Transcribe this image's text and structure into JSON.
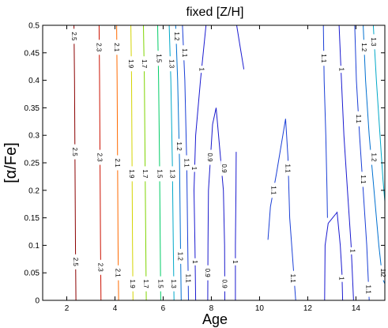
{
  "chart_data": {
    "type": "contour",
    "title": "fixed [Z/H]",
    "xlabel": "Age",
    "ylabel": "[α/Fe]",
    "xlim": [
      1,
      15.2
    ],
    "ylim": [
      0,
      0.5
    ],
    "x_ticks": [
      "2",
      "4",
      "6",
      "8",
      "10",
      "12",
      "14"
    ],
    "x_tick_values": [
      2,
      4,
      6,
      8,
      10,
      12,
      14
    ],
    "y_ticks": [
      "0",
      "0.05",
      "0.1",
      "0.15",
      "0.2",
      "0.25",
      "0.3",
      "0.35",
      "0.4",
      "0.45",
      "0.5"
    ],
    "y_tick_values": [
      0,
      0.05,
      0.1,
      0.15,
      0.2,
      0.25,
      0.3,
      0.35,
      0.4,
      0.45,
      0.5
    ],
    "grid": false,
    "legend": "none",
    "contours": [
      {
        "level": "2.5",
        "color": "#8b0000",
        "points": [
          [
            2.38,
            0
          ],
          [
            2.36,
            0.1
          ],
          [
            2.34,
            0.25
          ],
          [
            2.32,
            0.4
          ],
          [
            2.3,
            0.5
          ]
        ],
        "labels": [
          {
            "x": 2.37,
            "y": 0.07
          },
          {
            "x": 2.34,
            "y": 0.27
          },
          {
            "x": 2.31,
            "y": 0.48
          }
        ]
      },
      {
        "level": "2.3",
        "color": "#cc1100",
        "points": [
          [
            3.42,
            0
          ],
          [
            3.4,
            0.1
          ],
          [
            3.38,
            0.25
          ],
          [
            3.36,
            0.4
          ],
          [
            3.34,
            0.5
          ]
        ],
        "labels": [
          {
            "x": 3.41,
            "y": 0.06
          },
          {
            "x": 3.38,
            "y": 0.26
          },
          {
            "x": 3.35,
            "y": 0.46
          }
        ]
      },
      {
        "level": "2.1",
        "color": "#ff6a00",
        "points": [
          [
            4.15,
            0
          ],
          [
            4.13,
            0.1
          ],
          [
            4.11,
            0.25
          ],
          [
            4.09,
            0.4
          ],
          [
            4.07,
            0.5
          ]
        ],
        "labels": [
          {
            "x": 4.14,
            "y": 0.05
          },
          {
            "x": 4.11,
            "y": 0.25
          },
          {
            "x": 4.08,
            "y": 0.46
          }
        ]
      },
      {
        "level": "1.9",
        "color": "#d4d400",
        "points": [
          [
            4.75,
            0
          ],
          [
            4.73,
            0.1
          ],
          [
            4.71,
            0.25
          ],
          [
            4.69,
            0.4
          ],
          [
            4.66,
            0.5
          ]
        ],
        "labels": [
          {
            "x": 4.74,
            "y": 0.03
          },
          {
            "x": 4.71,
            "y": 0.23
          },
          {
            "x": 4.68,
            "y": 0.43
          }
        ]
      },
      {
        "level": "1.7",
        "color": "#7fd400",
        "points": [
          [
            5.3,
            0
          ],
          [
            5.28,
            0.1
          ],
          [
            5.25,
            0.25
          ],
          [
            5.22,
            0.4
          ],
          [
            5.18,
            0.5
          ]
        ],
        "labels": [
          {
            "x": 5.3,
            "y": 0.03
          },
          {
            "x": 5.27,
            "y": 0.23
          },
          {
            "x": 5.23,
            "y": 0.43
          }
        ]
      },
      {
        "level": "1.5",
        "color": "#00cc66",
        "points": [
          [
            5.9,
            0
          ],
          [
            5.88,
            0.1
          ],
          [
            5.85,
            0.25
          ],
          [
            5.81,
            0.4
          ],
          [
            5.77,
            0.5
          ]
        ],
        "labels": [
          {
            "x": 5.9,
            "y": 0.03
          },
          {
            "x": 5.87,
            "y": 0.23
          },
          {
            "x": 5.83,
            "y": 0.44
          }
        ]
      },
      {
        "level": "1.3",
        "color": "#00a8c8",
        "points": [
          [
            6.45,
            0
          ],
          [
            6.42,
            0.1
          ],
          [
            6.38,
            0.25
          ],
          [
            6.32,
            0.4
          ],
          [
            6.25,
            0.5
          ]
        ],
        "labels": [
          {
            "x": 6.45,
            "y": 0.03
          },
          {
            "x": 6.4,
            "y": 0.23
          },
          {
            "x": 6.36,
            "y": 0.43
          }
        ]
      },
      {
        "level": "1.2",
        "color": "#0070d0",
        "points": [
          [
            6.75,
            0
          ],
          [
            6.72,
            0.1
          ],
          [
            6.68,
            0.25
          ],
          [
            6.6,
            0.4
          ],
          [
            6.52,
            0.5
          ]
        ],
        "labels": [
          {
            "x": 6.73,
            "y": 0.08
          },
          {
            "x": 6.68,
            "y": 0.28
          },
          {
            "x": 6.58,
            "y": 0.48
          }
        ]
      },
      {
        "level": "1.1",
        "color": "#1a3fd6",
        "points": [
          [
            7.05,
            0
          ],
          [
            7.02,
            0.1
          ],
          [
            6.98,
            0.25
          ],
          [
            6.9,
            0.4
          ],
          [
            6.8,
            0.5
          ]
        ],
        "labels": [
          {
            "x": 7.05,
            "y": 0.04
          },
          {
            "x": 6.98,
            "y": 0.25
          },
          {
            "x": 6.9,
            "y": 0.45
          }
        ]
      },
      {
        "level": "1",
        "color": "#1a1ad0",
        "points": [
          [
            7.35,
            0
          ],
          [
            7.32,
            0.1
          ],
          [
            7.28,
            0.2
          ],
          [
            7.35,
            0.3
          ],
          [
            7.55,
            0.4
          ],
          [
            7.78,
            0.5
          ]
        ],
        "labels": [
          {
            "x": 7.33,
            "y": 0.07
          },
          {
            "x": 7.3,
            "y": 0.24
          },
          {
            "x": 7.6,
            "y": 0.42
          }
        ]
      },
      {
        "level": "0.9",
        "color": "#1a1acc",
        "points": [
          [
            7.85,
            0
          ],
          [
            7.86,
            0.1
          ],
          [
            7.88,
            0.2
          ],
          [
            8.05,
            0.32
          ],
          [
            8.2,
            0.35
          ],
          [
            8.5,
            0.2
          ],
          [
            8.55,
            0.1
          ],
          [
            8.56,
            0
          ]
        ],
        "labels": [
          {
            "x": 7.86,
            "y": 0.05
          },
          {
            "x": 7.95,
            "y": 0.26
          },
          {
            "x": 8.55,
            "y": 0.24
          },
          {
            "x": 8.56,
            "y": 0.03
          }
        ]
      },
      {
        "level": "1",
        "color": "#1a1ad0",
        "points": [
          [
            9.0,
            0
          ],
          [
            9.0,
            0.1
          ],
          [
            9.02,
            0.2
          ],
          [
            9.03,
            0.27
          ]
        ],
        "labels": [
          {
            "x": 9.0,
            "y": 0.07
          }
        ]
      },
      {
        "level": "1",
        "color": "#1a1ad0",
        "points": [
          [
            9.05,
            0.5
          ],
          [
            9.2,
            0.46
          ],
          [
            9.35,
            0.42
          ]
        ],
        "labels": []
      },
      {
        "level": "1.1",
        "color": "#1a3fd6",
        "points": [
          [
            10.35,
            0.11
          ],
          [
            10.45,
            0.17
          ],
          [
            10.7,
            0.23
          ],
          [
            11.08,
            0.33
          ],
          [
            11.18,
            0.26
          ],
          [
            11.25,
            0.15
          ],
          [
            11.5,
            0
          ]
        ],
        "labels": [
          {
            "x": 10.6,
            "y": 0.2
          },
          {
            "x": 11.18,
            "y": 0.24
          },
          {
            "x": 11.4,
            "y": 0.04
          }
        ]
      },
      {
        "level": "1",
        "color": "#1a1ad0",
        "points": [
          [
            12.7,
            0
          ],
          [
            12.72,
            0.1
          ],
          [
            12.85,
            0.14
          ],
          [
            13.22,
            0.16
          ],
          [
            13.35,
            0.1
          ],
          [
            13.42,
            0.05
          ],
          [
            13.45,
            0
          ]
        ],
        "labels": [
          {
            "x": 13.42,
            "y": 0.04
          }
        ]
      },
      {
        "level": "1.1",
        "color": "#1a3fd6",
        "points": [
          [
            12.65,
            0.5
          ],
          [
            12.68,
            0.4
          ],
          [
            12.75,
            0.3
          ],
          [
            12.8,
            0.2
          ],
          [
            12.82,
            0.15
          ]
        ],
        "labels": [
          {
            "x": 12.68,
            "y": 0.44
          }
        ]
      },
      {
        "level": "1",
        "color": "#1a1ad0",
        "points": [
          [
            13.3,
            0.5
          ],
          [
            13.4,
            0.4
          ],
          [
            13.5,
            0.3
          ],
          [
            13.65,
            0.2
          ],
          [
            13.8,
            0.1
          ],
          [
            13.9,
            0
          ]
        ],
        "labels": [
          {
            "x": 13.42,
            "y": 0.42
          },
          {
            "x": 13.88,
            "y": 0.09
          }
        ]
      },
      {
        "level": "1.1",
        "color": "#1a3fd6",
        "points": [
          [
            13.95,
            0.5
          ],
          [
            14.02,
            0.4
          ],
          [
            14.15,
            0.3
          ],
          [
            14.3,
            0.2
          ],
          [
            14.45,
            0.1
          ],
          [
            14.55,
            0
          ]
        ],
        "labels": [
          {
            "x": 14.12,
            "y": 0.33
          },
          {
            "x": 14.32,
            "y": 0.22
          },
          {
            "x": 14.53,
            "y": 0.02
          }
        ]
      },
      {
        "level": "1.2",
        "color": "#0070d0",
        "points": [
          [
            14.3,
            0.5
          ],
          [
            14.4,
            0.4
          ],
          [
            14.55,
            0.3
          ],
          [
            14.75,
            0.2
          ],
          [
            14.95,
            0.1
          ],
          [
            15.1,
            0.04
          ],
          [
            15.2,
            0.03
          ]
        ],
        "labels": [
          {
            "x": 14.35,
            "y": 0.46
          },
          {
            "x": 14.75,
            "y": 0.26
          },
          {
            "x": 15.14,
            "y": 0.05
          }
        ]
      },
      {
        "level": "1.3",
        "color": "#00a8c8",
        "points": [
          [
            14.72,
            0.5
          ],
          [
            14.85,
            0.4
          ],
          [
            15.0,
            0.3
          ],
          [
            15.12,
            0.22
          ],
          [
            15.2,
            0.18
          ]
        ],
        "labels": [
          {
            "x": 14.74,
            "y": 0.47
          }
        ]
      }
    ]
  }
}
